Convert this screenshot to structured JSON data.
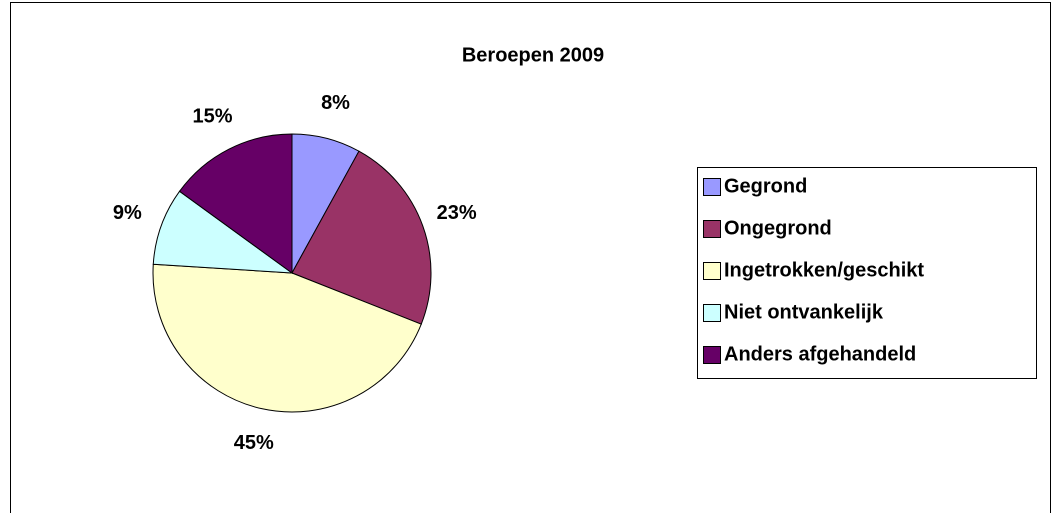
{
  "chart_data": {
    "type": "pie",
    "title": "Beroepen 2009",
    "categories": [
      "Gegrond",
      "Ongegrond",
      "Ingetrokken/geschikt",
      "Niet ontvankelijk",
      "Anders afgehandeld"
    ],
    "values": [
      8,
      23,
      45,
      9,
      15
    ],
    "value_labels": [
      "8%",
      "23%",
      "45%",
      "9%",
      "15%"
    ],
    "colors": [
      "#9999ff",
      "#993366",
      "#ffffcc",
      "#ccffff",
      "#660066"
    ],
    "legend": "right"
  }
}
